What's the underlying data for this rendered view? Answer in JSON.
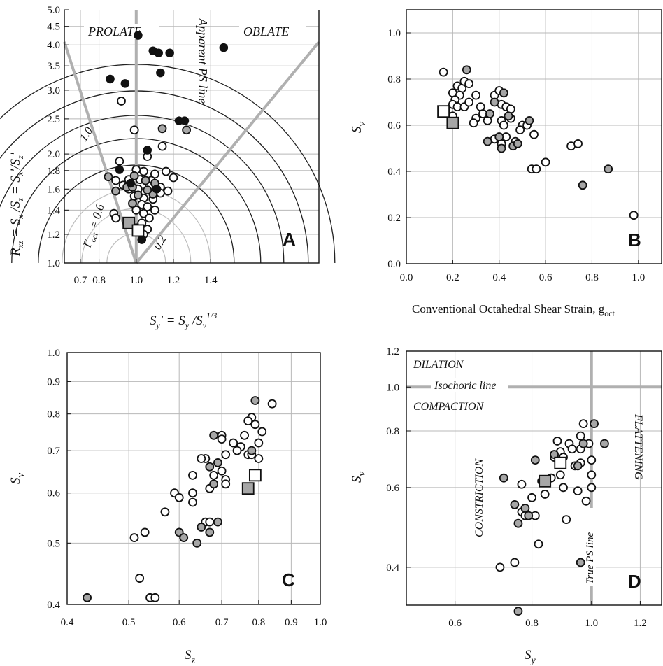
{
  "colors": {
    "open": "#ffffff",
    "gray": "#a6a6a6",
    "black": "#111111",
    "grid": "#b8b8b8",
    "thick_line": "#b0b0b0"
  },
  "chart_data": [
    {
      "panel": "A",
      "type": "scatter",
      "xlabel_parts": {
        "main": "S",
        "sub1": "y",
        "mid": "' = S",
        "sub2": "y",
        "mid2": " /S",
        "sub3": "v",
        "sup": "1/3"
      },
      "ylabel_parts": {
        "main": "R",
        "sub1": "xz",
        "mid": " = S",
        "sub2": "x",
        "mid2": " /S",
        "sub3": "z",
        "mid3": " = S",
        "sub4": "x",
        "mid4": "'/S",
        "sub5": "z",
        "tail": "'"
      },
      "x_ticks": [
        "0.7",
        "0.8",
        "1.0",
        "1.2",
        "1.4"
      ],
      "x_tick_values": [
        0.7,
        0.8,
        1.0,
        1.2,
        1.4
      ],
      "y_ticks": [
        "1.0",
        "1.2",
        "1.4",
        "1.6",
        "1.8",
        "2.0",
        "2.5",
        "3.0",
        "3.5",
        "4.0",
        "4.5",
        "5.0"
      ],
      "y_tick_values": [
        1.0,
        1.2,
        1.4,
        1.6,
        1.8,
        2.0,
        2.5,
        3.0,
        3.5,
        4.0,
        4.5,
        5.0
      ],
      "annotations": [
        "PROLATE",
        "OBLATE",
        "Apparent PS line",
        "1.0",
        "0.2"
      ],
      "gamma_label": {
        "main": "Γ",
        "sub": "oct",
        "tail": " = 0.6"
      },
      "panel_label": "A",
      "points_open": [
        [
          0.92,
          2.8
        ],
        [
          0.99,
          2.33
        ],
        [
          1.14,
          2.1
        ],
        [
          1.06,
          1.97
        ],
        [
          0.91,
          1.91
        ],
        [
          1.0,
          1.81
        ],
        [
          1.04,
          1.79
        ],
        [
          1.1,
          1.76
        ],
        [
          1.16,
          1.79
        ],
        [
          1.2,
          1.72
        ],
        [
          0.89,
          1.69
        ],
        [
          0.96,
          1.7
        ],
        [
          1.02,
          1.7
        ],
        [
          1.08,
          1.69
        ],
        [
          0.93,
          1.64
        ],
        [
          0.96,
          1.6
        ],
        [
          1.01,
          1.6
        ],
        [
          1.07,
          1.63
        ],
        [
          1.13,
          1.62
        ],
        [
          1.17,
          1.58
        ],
        [
          0.99,
          1.53
        ],
        [
          1.04,
          1.51
        ],
        [
          1.09,
          1.5
        ],
        [
          1.13,
          1.56
        ],
        [
          1.03,
          1.45
        ],
        [
          1.06,
          1.43
        ],
        [
          1.1,
          1.4
        ],
        [
          1.0,
          1.4
        ],
        [
          1.04,
          1.37
        ],
        [
          1.07,
          1.33
        ],
        [
          0.88,
          1.37
        ],
        [
          0.89,
          1.33
        ],
        [
          0.97,
          1.3
        ],
        [
          1.03,
          1.29
        ],
        [
          1.0,
          1.25
        ],
        [
          1.06,
          1.24
        ],
        [
          1.04,
          1.2
        ]
      ],
      "points_gray": [
        [
          0.85,
          1.73
        ],
        [
          1.14,
          2.35
        ],
        [
          1.27,
          2.33
        ],
        [
          0.99,
          1.74
        ],
        [
          0.95,
          1.62
        ],
        [
          1.05,
          1.69
        ],
        [
          1.1,
          1.66
        ],
        [
          1.09,
          1.55
        ],
        [
          1.01,
          1.54
        ],
        [
          0.89,
          1.58
        ],
        [
          0.98,
          1.46
        ],
        [
          0.95,
          1.29
        ],
        [
          0.98,
          1.62
        ],
        [
          1.06,
          1.59
        ]
      ],
      "points_black": [
        [
          1.01,
          4.25
        ],
        [
          1.09,
          3.85
        ],
        [
          1.12,
          3.8
        ],
        [
          1.18,
          3.8
        ],
        [
          1.47,
          3.93
        ],
        [
          1.13,
          3.35
        ],
        [
          0.86,
          3.22
        ],
        [
          0.94,
          3.13
        ],
        [
          1.23,
          2.47
        ],
        [
          1.26,
          2.47
        ],
        [
          1.06,
          2.05
        ],
        [
          0.91,
          1.81
        ],
        [
          0.97,
          1.66
        ],
        [
          1.11,
          1.6
        ],
        [
          1.03,
          1.16
        ]
      ],
      "squares": [
        {
          "x": 0.96,
          "y": 1.29,
          "fill": "gray"
        },
        {
          "x": 1.01,
          "y": 1.23,
          "fill": "open"
        }
      ]
    },
    {
      "panel": "B",
      "type": "scatter",
      "xlabel": "Conventional Octahedral Shear Strain, g",
      "xlabel_sub": "oct",
      "ylabel_parts": {
        "main": "S",
        "sub": "v"
      },
      "x_ticks": [
        "0.0",
        "0.2",
        "0.4",
        "0.6",
        "0.8",
        "1.0"
      ],
      "x_tick_values": [
        0.0,
        0.2,
        0.4,
        0.6,
        0.8,
        1.0
      ],
      "y_ticks": [
        "0.0",
        "0.2",
        "0.4",
        "0.6",
        "0.8",
        "1.0"
      ],
      "y_tick_values": [
        0.0,
        0.2,
        0.4,
        0.6,
        0.8,
        1.0
      ],
      "xlim": [
        0.0,
        1.1
      ],
      "ylim": [
        0.0,
        1.1
      ],
      "panel_label": "B",
      "points_open": [
        [
          0.16,
          0.83
        ],
        [
          0.2,
          0.74
        ],
        [
          0.22,
          0.77
        ],
        [
          0.24,
          0.76
        ],
        [
          0.25,
          0.79
        ],
        [
          0.27,
          0.78
        ],
        [
          0.23,
          0.73
        ],
        [
          0.21,
          0.71
        ],
        [
          0.2,
          0.69
        ],
        [
          0.22,
          0.68
        ],
        [
          0.25,
          0.68
        ],
        [
          0.27,
          0.7
        ],
        [
          0.3,
          0.73
        ],
        [
          0.32,
          0.68
        ],
        [
          0.3,
          0.63
        ],
        [
          0.29,
          0.61
        ],
        [
          0.33,
          0.65
        ],
        [
          0.38,
          0.73
        ],
        [
          0.4,
          0.75
        ],
        [
          0.41,
          0.69
        ],
        [
          0.43,
          0.68
        ],
        [
          0.45,
          0.67
        ],
        [
          0.41,
          0.62
        ],
        [
          0.42,
          0.6
        ],
        [
          0.45,
          0.63
        ],
        [
          0.5,
          0.6
        ],
        [
          0.52,
          0.6
        ],
        [
          0.49,
          0.58
        ],
        [
          0.38,
          0.54
        ],
        [
          0.43,
          0.55
        ],
        [
          0.41,
          0.52
        ],
        [
          0.47,
          0.53
        ],
        [
          0.55,
          0.56
        ],
        [
          0.6,
          0.44
        ],
        [
          0.54,
          0.41
        ],
        [
          0.56,
          0.41
        ],
        [
          0.71,
          0.51
        ],
        [
          0.74,
          0.52
        ],
        [
          0.98,
          0.21
        ],
        [
          0.2,
          0.64
        ],
        [
          0.35,
          0.62
        ]
      ],
      "points_gray": [
        [
          0.26,
          0.84
        ],
        [
          0.36,
          0.65
        ],
        [
          0.35,
          0.53
        ],
        [
          0.38,
          0.7
        ],
        [
          0.42,
          0.74
        ],
        [
          0.44,
          0.64
        ],
        [
          0.46,
          0.51
        ],
        [
          0.48,
          0.52
        ],
        [
          0.53,
          0.62
        ],
        [
          0.41,
          0.5
        ],
        [
          0.4,
          0.55
        ],
        [
          0.76,
          0.34
        ],
        [
          0.87,
          0.41
        ]
      ],
      "points_black": [],
      "squares": [
        {
          "x": 0.16,
          "y": 0.66,
          "fill": "open"
        },
        {
          "x": 0.2,
          "y": 0.61,
          "fill": "gray"
        }
      ]
    },
    {
      "panel": "C",
      "type": "scatter",
      "xlabel_parts": {
        "main": "S",
        "sub": "z"
      },
      "ylabel_parts": {
        "main": "S",
        "sub": "v"
      },
      "x_ticks": [
        "0.4",
        "0.5",
        "0.6",
        "0.7",
        "0.8",
        "0.9",
        "1.0"
      ],
      "x_tick_values": [
        0.4,
        0.5,
        0.6,
        0.7,
        0.8,
        0.9,
        1.0
      ],
      "y_ticks": [
        "0.4",
        "0.5",
        "0.6",
        "0.7",
        "0.8",
        "0.9",
        "1.0"
      ],
      "y_tick_values": [
        0.4,
        0.5,
        0.6,
        0.7,
        0.8,
        0.9,
        1.0
      ],
      "scale": "log",
      "panel_label": "C",
      "points_open": [
        [
          0.84,
          0.83
        ],
        [
          0.78,
          0.79
        ],
        [
          0.77,
          0.78
        ],
        [
          0.79,
          0.77
        ],
        [
          0.81,
          0.75
        ],
        [
          0.76,
          0.74
        ],
        [
          0.8,
          0.72
        ],
        [
          0.73,
          0.72
        ],
        [
          0.75,
          0.71
        ],
        [
          0.7,
          0.74
        ],
        [
          0.7,
          0.73
        ],
        [
          0.77,
          0.69
        ],
        [
          0.8,
          0.68
        ],
        [
          0.78,
          0.69
        ],
        [
          0.74,
          0.7
        ],
        [
          0.71,
          0.69
        ],
        [
          0.7,
          0.65
        ],
        [
          0.71,
          0.63
        ],
        [
          0.71,
          0.62
        ],
        [
          0.66,
          0.68
        ],
        [
          0.65,
          0.68
        ],
        [
          0.63,
          0.64
        ],
        [
          0.63,
          0.6
        ],
        [
          0.63,
          0.58
        ],
        [
          0.67,
          0.61
        ],
        [
          0.68,
          0.64
        ],
        [
          0.59,
          0.6
        ],
        [
          0.6,
          0.59
        ],
        [
          0.57,
          0.56
        ],
        [
          0.51,
          0.51
        ],
        [
          0.53,
          0.52
        ],
        [
          0.66,
          0.54
        ],
        [
          0.67,
          0.54
        ],
        [
          0.52,
          0.44
        ],
        [
          0.54,
          0.41
        ],
        [
          0.55,
          0.41
        ]
      ],
      "points_gray": [
        [
          0.79,
          0.84
        ],
        [
          0.68,
          0.74
        ],
        [
          0.78,
          0.7
        ],
        [
          0.69,
          0.67
        ],
        [
          0.67,
          0.66
        ],
        [
          0.68,
          0.62
        ],
        [
          0.6,
          0.52
        ],
        [
          0.61,
          0.51
        ],
        [
          0.65,
          0.53
        ],
        [
          0.67,
          0.52
        ],
        [
          0.69,
          0.54
        ],
        [
          0.64,
          0.5
        ],
        [
          0.43,
          0.41
        ]
      ],
      "points_black": [],
      "squares": [
        {
          "x": 0.77,
          "y": 0.61,
          "fill": "gray"
        },
        {
          "x": 0.79,
          "y": 0.64,
          "fill": "open"
        }
      ]
    },
    {
      "panel": "D",
      "type": "scatter",
      "xlabel_parts": {
        "main": "S",
        "sub": "y"
      },
      "ylabel_parts": {
        "main": "S",
        "sub": "v"
      },
      "x_ticks": [
        "0.6",
        "0.8",
        "1.0",
        "1.2"
      ],
      "x_tick_values": [
        0.6,
        0.8,
        1.0,
        1.2
      ],
      "y_ticks": [
        "0.4",
        "0.6",
        "0.8",
        "1.0",
        "1.2"
      ],
      "y_tick_values": [
        0.4,
        0.6,
        0.8,
        1.0,
        1.2
      ],
      "scale": "log",
      "annotations": [
        "DILATION",
        "Isochoric line",
        "COMPACTION",
        "CONSTRICTION",
        "FLATTENING",
        "True PS line"
      ],
      "panel_label": "D",
      "points_open": [
        [
          0.97,
          0.83
        ],
        [
          0.96,
          0.78
        ],
        [
          0.88,
          0.76
        ],
        [
          0.92,
          0.75
        ],
        [
          0.99,
          0.75
        ],
        [
          0.96,
          0.73
        ],
        [
          0.93,
          0.73
        ],
        [
          0.89,
          0.72
        ],
        [
          0.87,
          0.7
        ],
        [
          0.9,
          0.7
        ],
        [
          0.96,
          0.68
        ],
        [
          1.0,
          0.69
        ],
        [
          0.94,
          0.67
        ],
        [
          0.89,
          0.64
        ],
        [
          1.0,
          0.64
        ],
        [
          0.86,
          0.63
        ],
        [
          0.9,
          0.6
        ],
        [
          1.0,
          0.6
        ],
        [
          0.84,
          0.58
        ],
        [
          0.95,
          0.59
        ],
        [
          0.98,
          0.56
        ],
        [
          0.91,
          0.51
        ],
        [
          0.77,
          0.53
        ],
        [
          0.78,
          0.52
        ],
        [
          0.81,
          0.52
        ],
        [
          0.77,
          0.61
        ],
        [
          0.8,
          0.57
        ],
        [
          0.82,
          0.45
        ],
        [
          0.75,
          0.41
        ],
        [
          0.71,
          0.4
        ]
      ],
      "points_gray": [
        [
          1.01,
          0.83
        ],
        [
          1.05,
          0.75
        ],
        [
          0.97,
          0.75
        ],
        [
          0.95,
          0.67
        ],
        [
          0.87,
          0.71
        ],
        [
          0.81,
          0.69
        ],
        [
          0.83,
          0.62
        ],
        [
          0.72,
          0.63
        ],
        [
          0.75,
          0.55
        ],
        [
          0.78,
          0.54
        ],
        [
          0.79,
          0.52
        ],
        [
          0.76,
          0.5
        ],
        [
          0.96,
          0.41
        ],
        [
          0.76,
          0.32
        ]
      ],
      "points_black": [],
      "squares": [
        {
          "x": 0.84,
          "y": 0.62,
          "fill": "gray"
        },
        {
          "x": 0.89,
          "y": 0.68,
          "fill": "open"
        }
      ]
    }
  ]
}
